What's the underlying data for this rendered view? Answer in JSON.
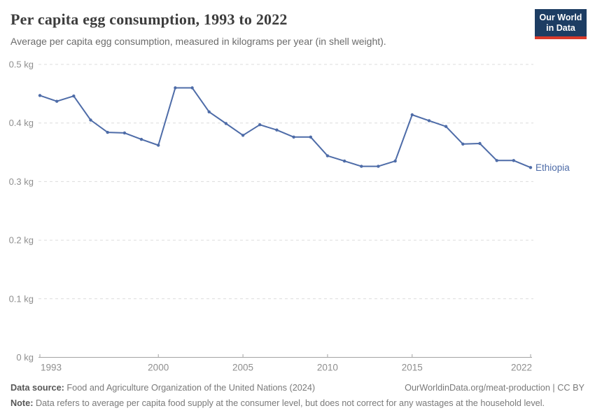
{
  "header": {
    "title": "Per capita egg consumption, 1993 to 2022",
    "subtitle": "Average per capita egg consumption, measured in kilograms per year (in shell weight)."
  },
  "logo": {
    "line1": "Our World",
    "line2": "in Data",
    "background": "#1d3d63",
    "bar_color": "#d93a2b"
  },
  "footer": {
    "source_label": "Data source:",
    "source_text": "Food and Agriculture Organization of the United Nations (2024)",
    "link_text": "OurWorldinData.org/meat-production | CC BY",
    "note_label": "Note:",
    "note_text": "Data refers to average per capita food supply at the consumer level, but does not correct for any wastages at the household level."
  },
  "chart_data": {
    "type": "line",
    "title": "Per capita egg consumption, 1993 to 2022",
    "xlabel": "",
    "ylabel": "kilograms per year",
    "ylim": [
      0,
      0.5
    ],
    "grid": true,
    "legend_position": "end-of-line",
    "x": [
      1993,
      1994,
      1995,
      1996,
      1997,
      1998,
      1999,
      2000,
      2001,
      2002,
      2003,
      2004,
      2005,
      2006,
      2007,
      2008,
      2009,
      2010,
      2011,
      2012,
      2013,
      2014,
      2015,
      2016,
      2017,
      2018,
      2019,
      2020,
      2021,
      2022
    ],
    "series": [
      {
        "name": "Ethiopia",
        "color": "#4e6ca8",
        "values": [
          0.447,
          0.437,
          0.446,
          0.405,
          0.384,
          0.383,
          0.372,
          0.362,
          0.46,
          0.46,
          0.419,
          0.399,
          0.379,
          0.397,
          0.388,
          0.376,
          0.376,
          0.344,
          0.335,
          0.326,
          0.326,
          0.335,
          0.414,
          0.404,
          0.394,
          0.364,
          0.365,
          0.336,
          0.336,
          0.324
        ]
      }
    ],
    "y_ticks": [
      {
        "value": 0.5,
        "label": "0.5 kg"
      },
      {
        "value": 0.4,
        "label": "0.4 kg"
      },
      {
        "value": 0.3,
        "label": "0.3 kg"
      },
      {
        "value": 0.2,
        "label": "0.2 kg"
      },
      {
        "value": 0.1,
        "label": "0.1 kg"
      },
      {
        "value": 0,
        "label": "0 kg"
      }
    ],
    "x_ticks": [
      {
        "value": 1993,
        "label": "1993"
      },
      {
        "value": 2000,
        "label": "2000"
      },
      {
        "value": 2005,
        "label": "2005"
      },
      {
        "value": 2010,
        "label": "2010"
      },
      {
        "value": 2015,
        "label": "2015"
      },
      {
        "value": 2022,
        "label": "2022"
      }
    ],
    "colors": {
      "grid": "#dcdcdc",
      "axis": "#a3a3a3",
      "tick_text": "#8f8f8f"
    }
  }
}
